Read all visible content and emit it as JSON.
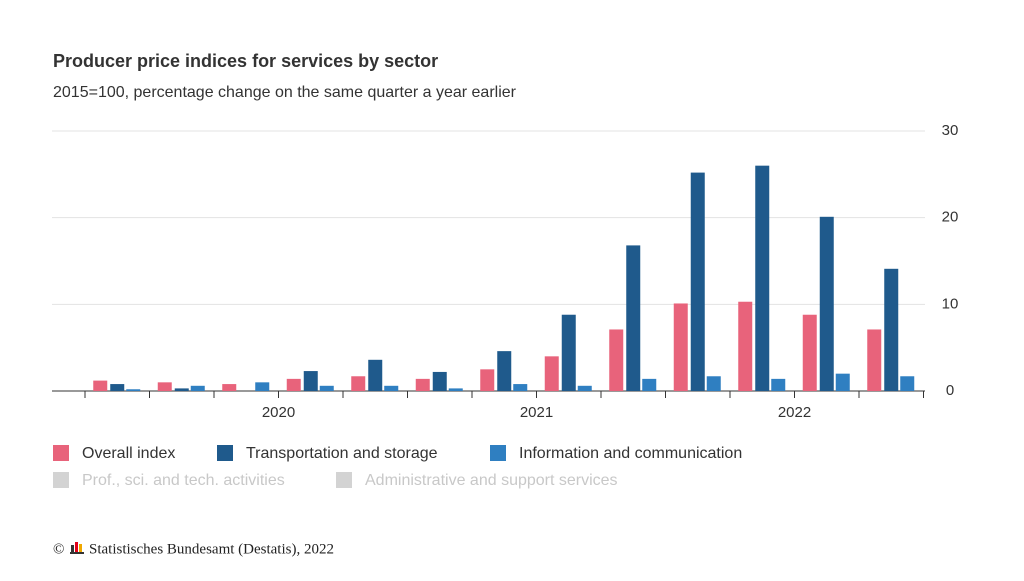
{
  "chart_data": {
    "type": "bar",
    "title": "Producer price indices for services by sector",
    "subtitle": "2015=100, percentage change on the same quarter a year earlier",
    "categories": [
      null,
      null,
      null,
      null,
      null,
      null,
      null,
      null,
      null,
      null,
      null,
      null,
      null
    ],
    "year_labels": [
      "2020",
      "2021",
      "2022"
    ],
    "series": [
      {
        "name": "Overall index",
        "color": "#e8637b",
        "values": [
          1.2,
          1.0,
          0.8,
          1.4,
          1.7,
          1.4,
          2.5,
          4.0,
          7.1,
          10.1,
          10.3,
          8.8,
          7.1
        ]
      },
      {
        "name": "Transportation and storage",
        "color": "#1f5a8c",
        "values": [
          0.8,
          0.3,
          0,
          2.3,
          3.6,
          2.2,
          4.6,
          8.8,
          16.8,
          25.2,
          26.0,
          20.1,
          14.1
        ]
      },
      {
        "name": "Information and communication",
        "color": "#2f7fc1",
        "values": [
          0.2,
          0.6,
          1.0,
          0.6,
          0.6,
          0.3,
          0.8,
          0.6,
          1.4,
          1.7,
          1.4,
          2.0,
          1.7
        ]
      }
    ],
    "hidden_series": [
      {
        "name": "Prof., sci. and tech. activities",
        "color": "#d3d3d3"
      },
      {
        "name": "Administrative and support services",
        "color": "#d3d3d3"
      }
    ],
    "ylim": [
      0,
      30
    ],
    "yticks": [
      0,
      10,
      20,
      30
    ],
    "grid": true,
    "source": "Statistisches Bundesamt (Destatis), 2022"
  }
}
